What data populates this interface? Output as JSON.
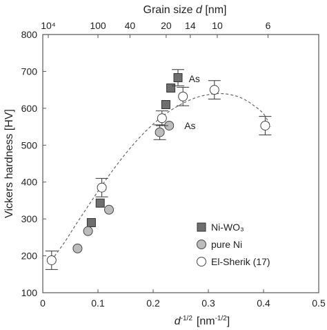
{
  "chart_data": {
    "type": "scatter",
    "xlabel_base": "d",
    "xlabel_exp": "-1/2",
    "xlabel_unit_prefix": "[nm",
    "xlabel_unit_exp": "-1/2",
    "xlabel_unit_suffix": "]",
    "ylabel": "Vickers hardness [HV]",
    "top_label_prefix": "Grain size ",
    "top_label_var": "d",
    "top_label_unit": " [nm]",
    "xlim": [
      0,
      0.5
    ],
    "ylim": [
      100,
      800
    ],
    "x_ticks": [
      {
        "value": 0,
        "label": "0"
      },
      {
        "value": 0.1,
        "label": "0.1"
      },
      {
        "value": 0.2,
        "label": "0.2"
      },
      {
        "value": 0.3,
        "label": "0.3"
      },
      {
        "value": 0.4,
        "label": "0.4"
      },
      {
        "value": 0.5,
        "label": "0.5"
      }
    ],
    "y_ticks": [
      {
        "value": 100,
        "label": "100"
      },
      {
        "value": 200,
        "label": "200"
      },
      {
        "value": 300,
        "label": "300"
      },
      {
        "value": 400,
        "label": "400"
      },
      {
        "value": 500,
        "label": "500"
      },
      {
        "value": 600,
        "label": "600"
      },
      {
        "value": 700,
        "label": "700"
      },
      {
        "value": 800,
        "label": "800"
      }
    ],
    "top_ticks": [
      {
        "value": 0.01,
        "label": "10⁴"
      },
      {
        "value": 0.1,
        "label": "100"
      },
      {
        "value": 0.158,
        "label": "40"
      },
      {
        "value": 0.2236,
        "label": "20"
      },
      {
        "value": 0.2673,
        "label": "14"
      },
      {
        "value": 0.3162,
        "label": "10"
      },
      {
        "value": 0.4082,
        "label": "6"
      }
    ],
    "series": [
      {
        "name": "Ni-WO₃",
        "marker": "square",
        "color": "#6e6e6e",
        "points": [
          {
            "x": 0.088,
            "y": 290
          },
          {
            "x": 0.104,
            "y": 343
          },
          {
            "x": 0.223,
            "y": 610
          },
          {
            "x": 0.232,
            "y": 655
          },
          {
            "x": 0.245,
            "y": 683,
            "err": 22
          }
        ]
      },
      {
        "name": "pure Ni",
        "marker": "circle",
        "color": "#bcbcbc",
        "points": [
          {
            "x": 0.063,
            "y": 220
          },
          {
            "x": 0.082,
            "y": 267
          },
          {
            "x": 0.12,
            "y": 325
          },
          {
            "x": 0.212,
            "y": 535,
            "err": 20
          },
          {
            "x": 0.229,
            "y": 553
          }
        ]
      },
      {
        "name": "El-Sherik (17)",
        "marker": "circle-open",
        "color": "#ffffff",
        "points": [
          {
            "x": 0.016,
            "y": 188,
            "err": 25
          },
          {
            "x": 0.107,
            "y": 385,
            "err": 25
          },
          {
            "x": 0.216,
            "y": 573,
            "err": 20
          },
          {
            "x": 0.254,
            "y": 632,
            "err": 25
          },
          {
            "x": 0.311,
            "y": 650,
            "err": 25
          },
          {
            "x": 0.403,
            "y": 553,
            "err": 25
          }
        ]
      }
    ],
    "fit_curve": [
      {
        "x": 0.016,
        "y": 188
      },
      {
        "x": 0.04,
        "y": 238
      },
      {
        "x": 0.06,
        "y": 285
      },
      {
        "x": 0.08,
        "y": 330
      },
      {
        "x": 0.1,
        "y": 375
      },
      {
        "x": 0.12,
        "y": 418
      },
      {
        "x": 0.14,
        "y": 458
      },
      {
        "x": 0.16,
        "y": 495
      },
      {
        "x": 0.18,
        "y": 528
      },
      {
        "x": 0.2,
        "y": 557
      },
      {
        "x": 0.22,
        "y": 582
      },
      {
        "x": 0.24,
        "y": 602
      },
      {
        "x": 0.26,
        "y": 618
      },
      {
        "x": 0.28,
        "y": 630
      },
      {
        "x": 0.3,
        "y": 637
      },
      {
        "x": 0.32,
        "y": 640
      },
      {
        "x": 0.34,
        "y": 637
      },
      {
        "x": 0.36,
        "y": 628
      },
      {
        "x": 0.38,
        "y": 610
      },
      {
        "x": 0.4,
        "y": 585
      },
      {
        "x": 0.413,
        "y": 550
      }
    ],
    "annotations": [
      {
        "text": "As",
        "x": 0.252,
        "y": 680
      },
      {
        "text": "As",
        "x": 0.244,
        "y": 553
      }
    ],
    "legend_position": "bottom-right",
    "grid": false
  }
}
